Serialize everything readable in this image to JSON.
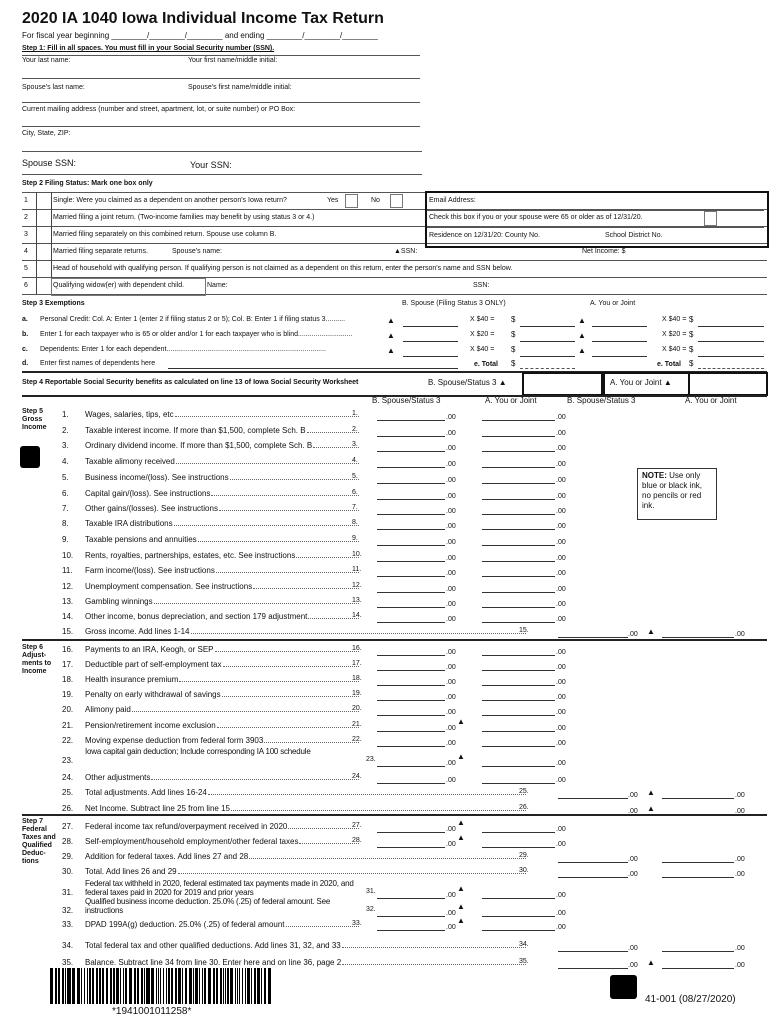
{
  "header": {
    "title": "2020 IA 1040 Iowa Individual Income Tax Return",
    "fiscal_year": "For fiscal year beginning ________/________/________ and ending ________/________/________"
  },
  "step1": {
    "heading": "Step 1: Fill in all spaces. You must fill in your Social Security number (SSN).",
    "your_last_name": "Your last name:",
    "your_first_name": "Your first name/middle initial:",
    "spouse_last_name": "Spouse's last name:",
    "spouse_first_name": "Spouse's first name/middle initial:",
    "address": "Current mailing address (number and street, apartment, lot, or suite number) or PO Box:",
    "city": "City, State, ZIP:",
    "spouse_ssn": "Spouse SSN:",
    "your_ssn": "Your SSN:"
  },
  "step2": {
    "heading": "Step 2 Filing Status: Mark one box only",
    "rows": [
      {
        "num": "1",
        "label": "Single: Were you claimed as a dependent on another person's Iowa return?"
      },
      {
        "num": "2",
        "label": "Married filing a joint return. (Two-income families may benefit by using status 3 or 4.)"
      },
      {
        "num": "3",
        "label": "Married filing separately on this combined return. Spouse use column B."
      },
      {
        "num": "4",
        "label": "Married filing separate returns."
      },
      {
        "num": "5",
        "label": "Head of household with qualifying person. If qualifying person is not claimed as a dependent on this return, enter the person's name and SSN below."
      },
      {
        "num": "6",
        "label": "Qualifying widow(er) with dependent child."
      }
    ],
    "yes": "Yes",
    "no": "No",
    "spouse_name": "Spouse's name:",
    "ssn4": "▲SSN:",
    "net_income": "Net Income:  $",
    "name6": "Name:",
    "ssn6": "SSN:",
    "email": "Email Address:",
    "over65": "Check this box if you or your spouse were 65 or older as of 12/31/20.",
    "county": "Residence on 12/31/20: County No.",
    "school": "School District No."
  },
  "step3": {
    "heading": "Step 3 Exemptions",
    "col_b": "B. Spouse (Filing Status 3 ONLY)",
    "col_a": "A. You or Joint",
    "rows": [
      {
        "letter": "a.",
        "label": "Personal Credit: Col. A: Enter 1 (enter 2 if filing status 2 or 5); Col. B: Enter 1 if filing status 3..........",
        "mult": "X $40 ="
      },
      {
        "letter": "b.",
        "label": "Enter 1 for each taxpayer who is 65 or older and/or 1 for each taxpayer who is blind............................",
        "mult": "X $20 ="
      },
      {
        "letter": "c.",
        "label": "Dependents: Enter 1 for each dependent..................................................................................",
        "mult": "X $40 ="
      }
    ],
    "d_letter": "d.",
    "d_label": "Enter first names of dependents here",
    "e_total": "e. Total",
    "dollar": "$"
  },
  "step4": {
    "heading": "Step 4 Reportable Social Security benefits as calculated on line 13 of Iowa Social Security Worksheet",
    "col_b": "B. Spouse/Status 3 ▲",
    "col_a": "A. You or Joint ▲"
  },
  "columns": {
    "b1": "B. Spouse/Status 3",
    "a1": "A. You or Joint",
    "b2": "B. Spouse/Status 3",
    "a2": "A. You or Joint"
  },
  "cents": ".00",
  "step5": {
    "side": "Step 5 Gross Income",
    "lines": [
      {
        "num": "1.",
        "label": "Wages, salaries, tips, etc",
        "ref": "1."
      },
      {
        "num": "2.",
        "label": "Taxable interest income. If more than $1,500, complete Sch. B",
        "ref": "2."
      },
      {
        "num": "3.",
        "label": "Ordinary dividend income. If more than $1,500, complete Sch. B",
        "ref": "3."
      },
      {
        "num": "4.",
        "label": "Taxable alimony received",
        "ref": "4."
      },
      {
        "num": "5.",
        "label": "Business income/(loss). See instructions",
        "ref": "5."
      },
      {
        "num": "6.",
        "label": "Capital gain/(loss). See instructions",
        "ref": "6."
      },
      {
        "num": "7.",
        "label": "Other gains/(losses). See instructions",
        "ref": "7."
      },
      {
        "num": "8.",
        "label": "Taxable IRA distributions",
        "ref": "8."
      },
      {
        "num": "9.",
        "label": "Taxable pensions and annuities",
        "ref": "9."
      },
      {
        "num": "10.",
        "label": "Rents, royalties, partnerships, estates, etc. See instructions",
        "ref": "10."
      },
      {
        "num": "11.",
        "label": "Farm income/(loss). See instructions",
        "ref": "11."
      },
      {
        "num": "12.",
        "label": "Unemployment compensation. See instructions",
        "ref": "12."
      },
      {
        "num": "13.",
        "label": "Gambling winnings",
        "ref": "13."
      },
      {
        "num": "14.",
        "label": "Other income, bonus depreciation, and section 179 adjustment",
        "ref": "14."
      },
      {
        "num": "15.",
        "label": "Gross income. Add lines 1-14",
        "ref": "15."
      }
    ]
  },
  "note": {
    "bold": "NOTE:",
    "text": " Use only blue or black ink, no pencils or red ink."
  },
  "step6": {
    "side": "Step 6 Adjust- ments to Income",
    "lines": [
      {
        "num": "16.",
        "label": "Payments to an IRA, Keogh, or SEP",
        "ref": "16."
      },
      {
        "num": "17.",
        "label": "Deductible part of self-employment tax",
        "ref": "17."
      },
      {
        "num": "18.",
        "label": "Health insurance premium",
        "ref": "18."
      },
      {
        "num": "19.",
        "label": "Penalty on early withdrawal of savings",
        "ref": "19."
      },
      {
        "num": "20.",
        "label": "Alimony paid",
        "ref": "20."
      },
      {
        "num": "21.",
        "label": "Pension/retirement income exclusion",
        "ref": "21."
      },
      {
        "num": "22.",
        "label": "Moving expense deduction from federal form 3903",
        "ref": "22."
      },
      {
        "num": "23.",
        "label": "Iowa capital gain deduction; Include corresponding IA 100 schedule",
        "ref": "23."
      },
      {
        "num": "24.",
        "label": "Other adjustments",
        "ref": "24."
      },
      {
        "num": "25.",
        "label": "Total adjustments. Add lines 16-24",
        "ref": "25."
      },
      {
        "num": "26.",
        "label": "Net Income. Subtract line 25 from line 15",
        "ref": "26."
      }
    ]
  },
  "step7": {
    "side": "Step 7 Federal Taxes and Qualified Deduc- tions",
    "lines": [
      {
        "num": "27.",
        "label": "Federal income tax refund/overpayment received in 2020",
        "ref": "27."
      },
      {
        "num": "28.",
        "label": "Self-employment/household employment/other federal taxes",
        "ref": "28."
      },
      {
        "num": "29.",
        "label": "Addition for federal taxes. Add lines 27 and 28",
        "ref": "29."
      },
      {
        "num": "30.",
        "label": "Total. Add lines 26 and 29",
        "ref": "30."
      },
      {
        "num": "31.",
        "label": "Federal tax withheld in 2020, federal estimated tax payments made in 2020, and federal taxes paid in 2020 for 2019 and prior years",
        "ref": "31."
      },
      {
        "num": "32.",
        "label": "Qualified business income deduction. 25.0% (.25) of federal amount. See instructions",
        "ref": "32."
      },
      {
        "num": "33.",
        "label": "DPAD 199A(g) deduction. 25.0% (.25) of federal amount",
        "ref": "33."
      },
      {
        "num": "34.",
        "label": "Total federal tax and other qualified deductions. Add lines 31, 32, and 33",
        "ref": "34."
      },
      {
        "num": "35.",
        "label": "Balance. Subtract line 34 from line 30. Enter here and on line 36, page 2",
        "ref": "35."
      }
    ]
  },
  "footer": {
    "barcode_number": "*1941001011258*",
    "form_id": "41-001 (08/27/2020)"
  }
}
